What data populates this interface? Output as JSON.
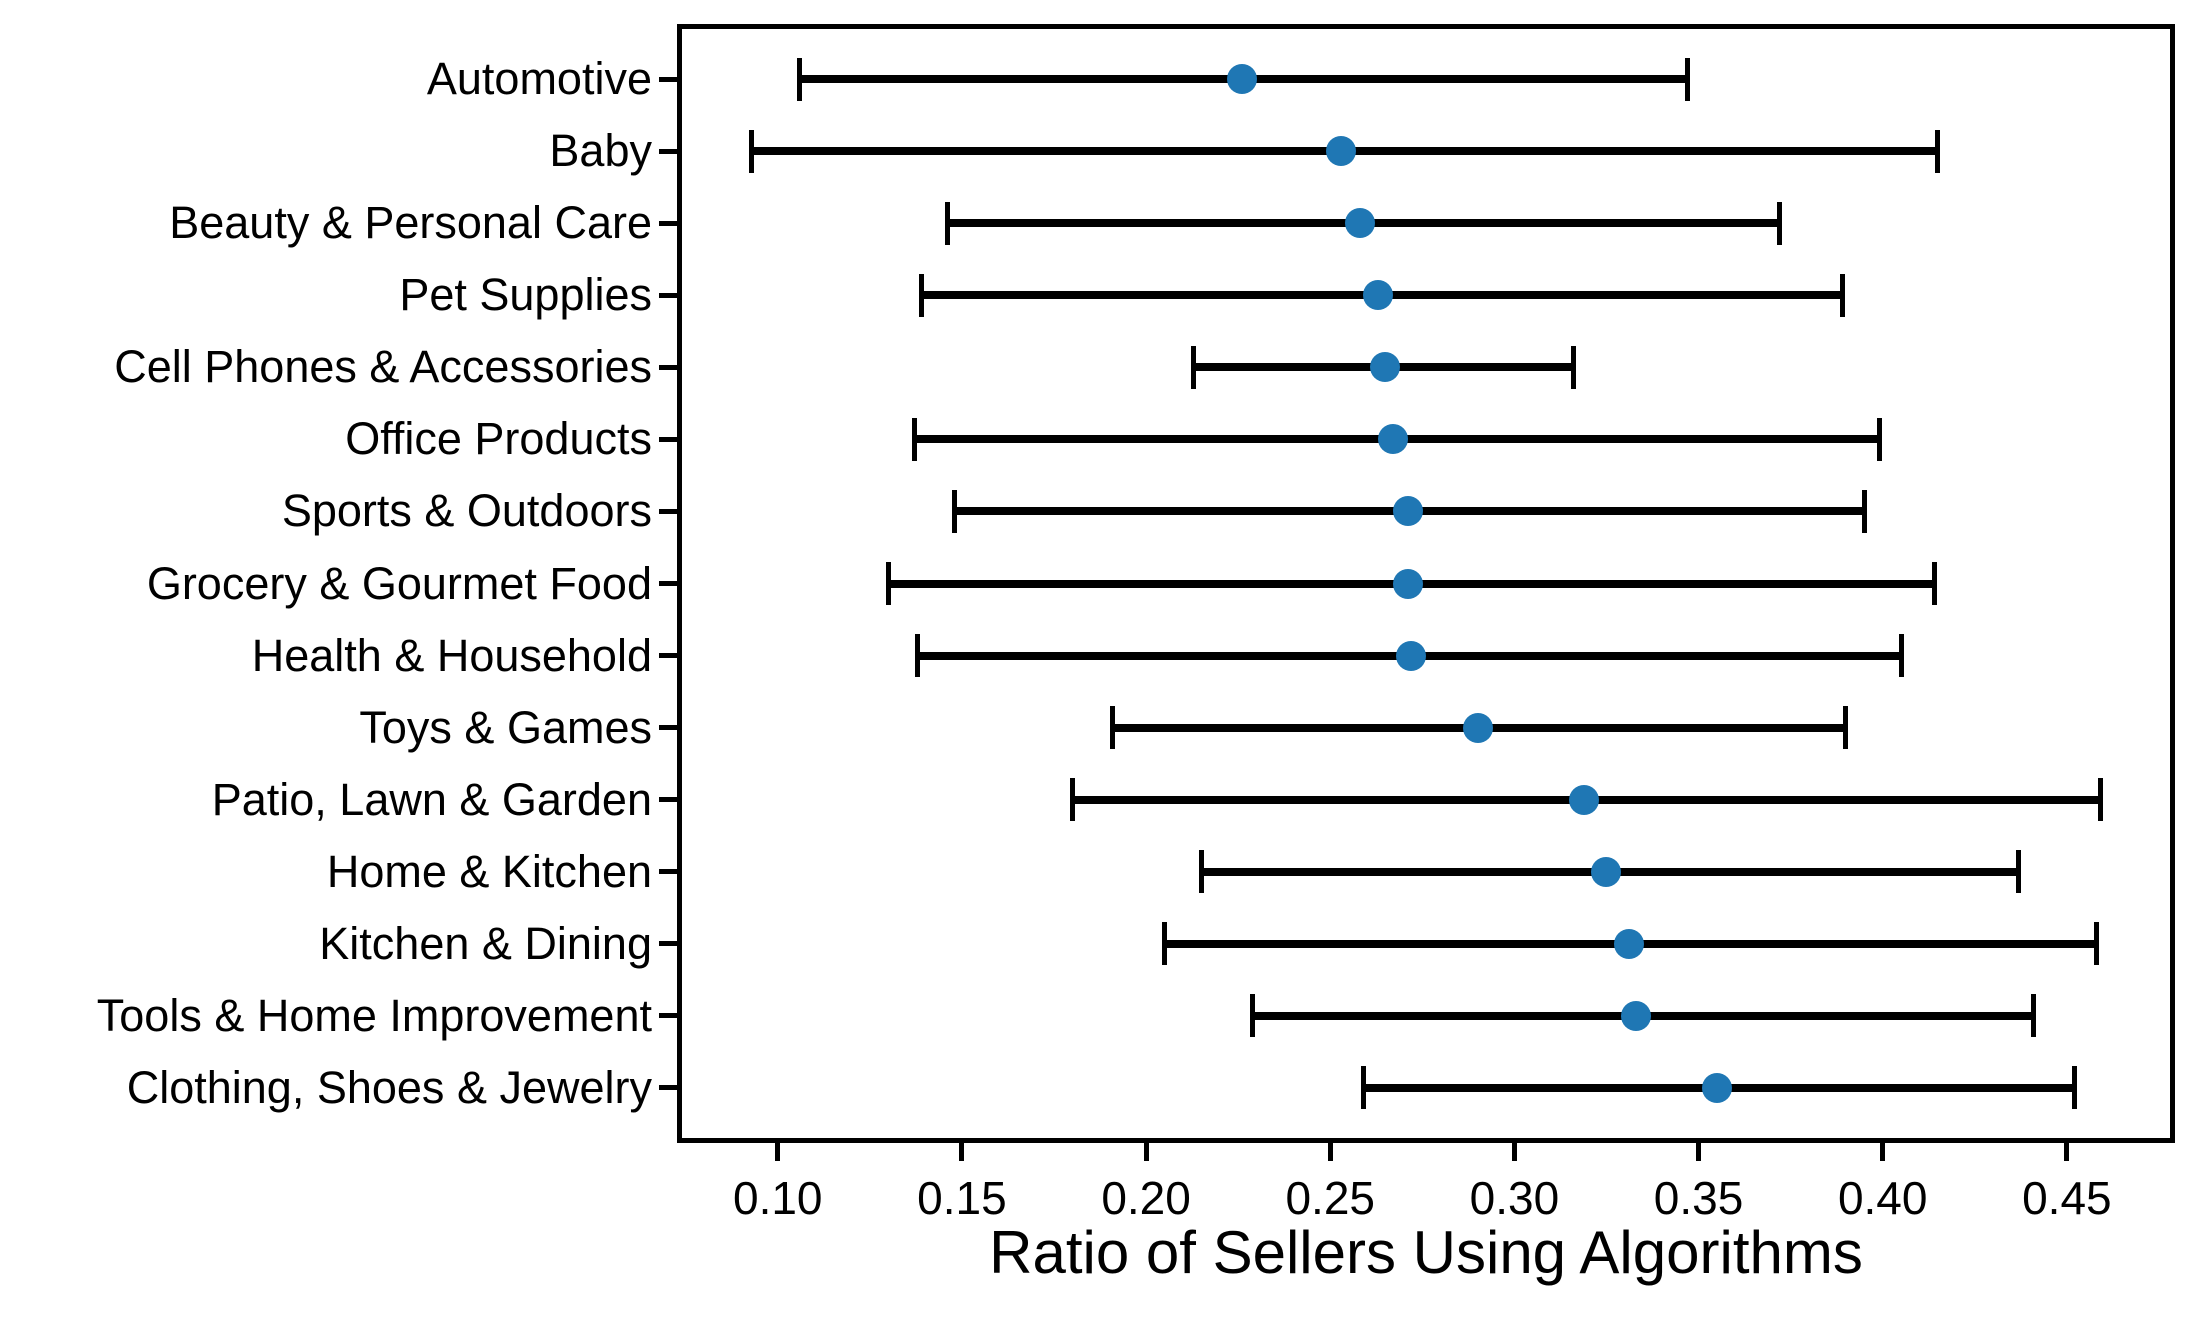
{
  "chart_data": {
    "type": "scatter",
    "subtype": "horizontal-dot-plot-with-error-bars",
    "title": "",
    "xlabel": "Ratio of Sellers Using Algorithms",
    "ylabel": "",
    "xlim": [
      0.074,
      0.478
    ],
    "x_ticks": [
      0.1,
      0.15,
      0.2,
      0.25,
      0.3,
      0.35,
      0.4,
      0.45
    ],
    "x_tick_labels": [
      "0.10",
      "0.15",
      "0.20",
      "0.25",
      "0.30",
      "0.35",
      "0.40",
      "0.45"
    ],
    "grid": false,
    "legend": false,
    "marker_color": "#1f77b4",
    "errorbar_color": "#000000",
    "categories": [
      "Automotive",
      "Baby",
      "Beauty & Personal Care",
      "Pet Supplies",
      "Cell Phones & Accessories",
      "Office Products",
      "Sports & Outdoors",
      "Grocery & Gourmet Food",
      "Health & Household",
      "Toys & Games",
      "Patio, Lawn & Garden",
      "Home & Kitchen",
      "Kitchen & Dining",
      "Tools & Home Improvement",
      "Clothing, Shoes & Jewelry"
    ],
    "series": [
      {
        "name": "Ratio of Sellers Using Algorithms",
        "values": [
          0.226,
          0.253,
          0.258,
          0.263,
          0.265,
          0.267,
          0.271,
          0.271,
          0.272,
          0.29,
          0.319,
          0.325,
          0.331,
          0.333,
          0.355
        ],
        "error_low": [
          0.106,
          0.093,
          0.146,
          0.139,
          0.213,
          0.137,
          0.148,
          0.13,
          0.138,
          0.191,
          0.18,
          0.215,
          0.205,
          0.229,
          0.259
        ],
        "error_high": [
          0.347,
          0.415,
          0.372,
          0.389,
          0.316,
          0.399,
          0.395,
          0.414,
          0.405,
          0.39,
          0.459,
          0.437,
          0.458,
          0.441,
          0.452
        ]
      }
    ]
  }
}
